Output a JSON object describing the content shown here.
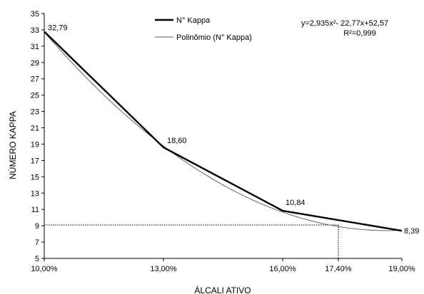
{
  "chart_data": {
    "type": "line",
    "xlabel": "ÁLCALI ATIVO",
    "ylabel": "NÚMERO KAPPA",
    "x_tick_labels": [
      "10,00%",
      "13,00%",
      "16,00%",
      "17,40%",
      "19,00%"
    ],
    "x_ticks": [
      10,
      13,
      16,
      17.4,
      19
    ],
    "xlim": [
      10,
      19
    ],
    "ylim": [
      5,
      35
    ],
    "y_ticks": [
      5,
      7,
      9,
      11,
      13,
      15,
      17,
      19,
      21,
      23,
      25,
      27,
      29,
      31,
      33,
      35
    ],
    "series": [
      {
        "name": "N° Kappa",
        "x": [
          10,
          13,
          16,
          19
        ],
        "y": [
          32.79,
          18.6,
          10.84,
          8.39
        ],
        "labels": [
          "32,79",
          "18,60",
          "10,84",
          "8,39"
        ],
        "color": "#000000"
      },
      {
        "name": "Polinômio (N° Kappa)",
        "type": "polynomial",
        "coefficients": [
          2.935,
          -22.77,
          52.57
        ],
        "x_scale": "point index 1-4 for x = 10, 13, 16, 19",
        "color": "#555555"
      }
    ],
    "reference_y": 9.1,
    "reference_x": 17.4,
    "equation": "y=2,935x²- 22,77x+52,57",
    "r_squared": "R²=0,999",
    "legend_position": "top-center",
    "grid": false
  }
}
